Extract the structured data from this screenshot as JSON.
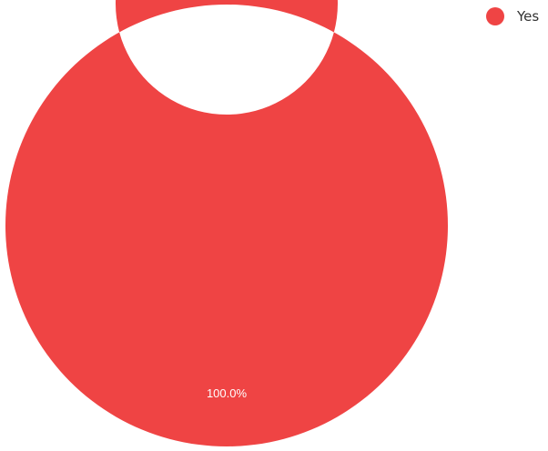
{
  "chart_data": {
    "type": "pie",
    "donut": true,
    "categories": [
      "Yes"
    ],
    "values": [
      100
    ],
    "slice_labels": [
      "100.0%"
    ],
    "colors": [
      "#ef4444"
    ],
    "separator_color": "#ffffff",
    "legend_position": "top-right"
  }
}
